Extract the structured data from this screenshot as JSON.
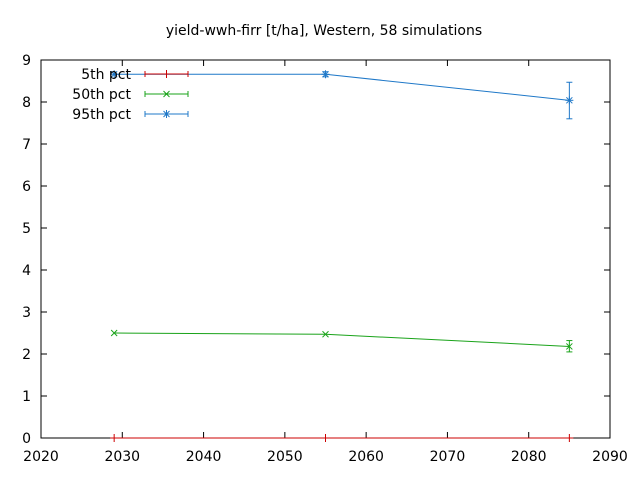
{
  "chart_data": {
    "type": "line",
    "title": "yield-wwh-firr [t/ha], Western, 58 simulations",
    "xlabel": "",
    "ylabel": "",
    "xlim": [
      2020,
      2090
    ],
    "ylim": [
      0,
      9
    ],
    "xticks": [
      "2020",
      "2030",
      "2040",
      "2050",
      "2060",
      "2070",
      "2080",
      "2090"
    ],
    "yticks": [
      "0",
      "1",
      "2",
      "3",
      "4",
      "5",
      "6",
      "7",
      "8",
      "9"
    ],
    "grid": false,
    "legend_position": "top-left",
    "series": [
      {
        "name": "5th pct",
        "color": "#cc0000",
        "marker": "plus",
        "x": [
          2029,
          2055,
          2085
        ],
        "y": [
          0,
          0,
          0
        ],
        "err_low": [
          0,
          0,
          0
        ],
        "err_high": [
          0,
          0,
          0
        ]
      },
      {
        "name": "50th pct",
        "color": "#1aa31a",
        "marker": "cross",
        "x": [
          2029,
          2055,
          2085
        ],
        "y": [
          2.5,
          2.47,
          2.18
        ],
        "err_low": [
          2.5,
          2.47,
          2.05
        ],
        "err_high": [
          2.5,
          2.47,
          2.32
        ]
      },
      {
        "name": "95th pct",
        "color": "#1f78c8",
        "marker": "star",
        "x": [
          2029,
          2055,
          2085
        ],
        "y": [
          8.66,
          8.66,
          8.04
        ],
        "err_low": [
          8.66,
          8.6,
          7.6
        ],
        "err_high": [
          8.66,
          8.72,
          8.47
        ]
      }
    ]
  }
}
